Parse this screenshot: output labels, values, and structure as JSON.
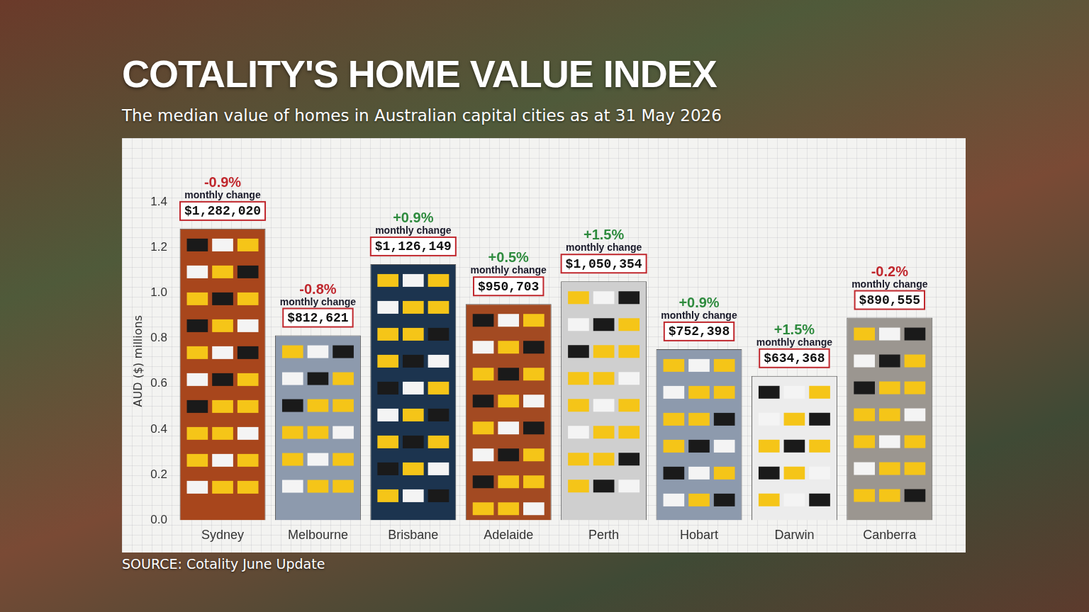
{
  "chart_data": {
    "type": "bar",
    "title": "COTALITY'S HOME VALUE INDEX",
    "subtitle": "The median value of homes in Australian capital cities as at 31 May 2026",
    "y_label": "AUD ($) millions",
    "source": "SOURCE: Cotality June Update",
    "categories": [
      "Sydney",
      "Melbourne",
      "Brisbane",
      "Adelaide",
      "Perth",
      "Hobart",
      "Darwin",
      "Canberra"
    ],
    "values": [
      1.28202,
      0.812621,
      1.126149,
      0.950703,
      1.050354,
      0.752398,
      0.634368,
      0.890555
    ],
    "value_labels": [
      "$1,282,020",
      "$812,621",
      "$1,126,149",
      "$950,703",
      "$1,050,354",
      "$752,398",
      "$634,368",
      "$890,555"
    ],
    "monthly_change": [
      -0.9,
      -0.8,
      0.9,
      0.5,
      1.5,
      0.9,
      1.5,
      -0.2
    ],
    "monthly_change_labels": [
      "-0.9%",
      "-0.8%",
      "+0.9%",
      "+0.5%",
      "+1.5%",
      "+0.9%",
      "+1.5%",
      "-0.2%"
    ],
    "monthly_change_caption": "monthly change",
    "colors": [
      "#a8461c",
      "#8d9aad",
      "#1c344f",
      "#a34a22",
      "#cfcfcf",
      "#8d9aad",
      "#ececec",
      "#9b9690"
    ],
    "ylim": [
      0,
      1.4
    ],
    "yticks": [
      {
        "value": 0,
        "label": "0.0"
      },
      0.2,
      0.4,
      0.6,
      0.8,
      {
        "value": 1,
        "label": "1.0"
      },
      1.2,
      1.4
    ],
    "grid": false,
    "data_labels": true
  }
}
